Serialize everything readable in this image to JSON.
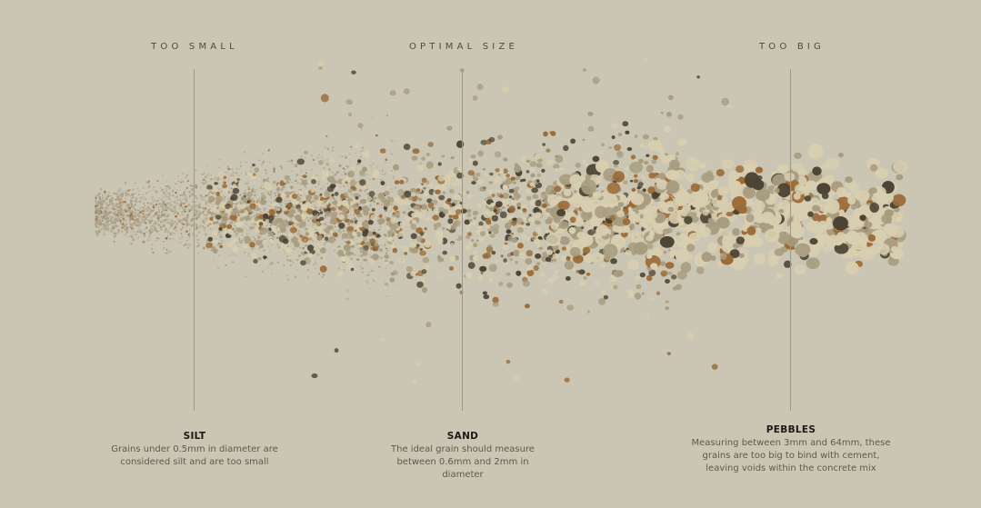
{
  "zones": [
    {
      "id": "silt",
      "heading": "TOO SMALL",
      "title": "SILT",
      "description": "Grains under 0.5mm in diameter are considered silt and are too small"
    },
    {
      "id": "sand",
      "heading": "OPTIMAL SIZE",
      "title": "SAND",
      "description": "The ideal grain should measure between 0.6mm and 2mm in diameter"
    },
    {
      "id": "pebbles",
      "heading": "TOO BIG",
      "title": "PEBBLES",
      "description": "Measuring between 3mm and 64mm, these grains are too big to bind with cement, leaving voids within the concrete mix"
    }
  ],
  "colors": {
    "background": "#cbc6b3",
    "grain_light": "#d8ceb0",
    "grain_mid": "#a89c80",
    "grain_brown": "#9a6a35",
    "grain_dark": "#4a4233"
  }
}
